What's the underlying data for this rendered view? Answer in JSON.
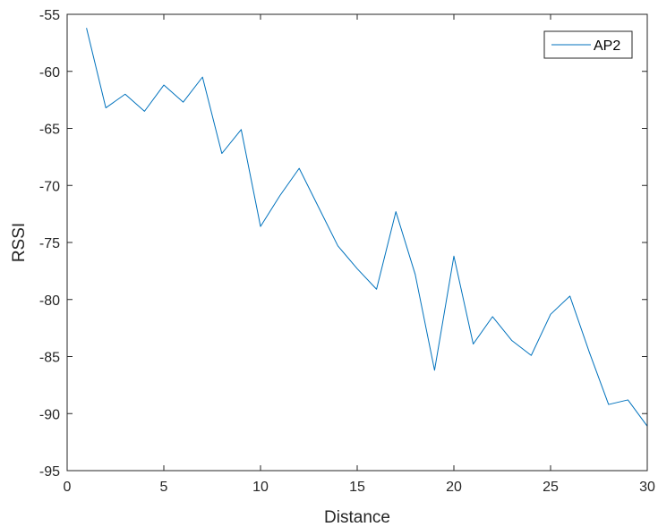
{
  "chart_data": {
    "type": "line",
    "title": "",
    "xlabel": "Distance",
    "ylabel": "RSSI",
    "xlim": [
      0,
      30
    ],
    "ylim": [
      -95,
      -55
    ],
    "xticks": [
      0,
      5,
      10,
      15,
      20,
      25,
      30
    ],
    "yticks": [
      -95,
      -90,
      -85,
      -80,
      -75,
      -70,
      -65,
      -60,
      -55
    ],
    "grid": false,
    "legend_position": "top-right",
    "series": [
      {
        "name": "AP2",
        "color": "#0072bd",
        "x": [
          1,
          2,
          3,
          4,
          5,
          6,
          7,
          8,
          9,
          10,
          11,
          12,
          13,
          14,
          15,
          16,
          17,
          18,
          19,
          20,
          21,
          22,
          23,
          24,
          25,
          26,
          27,
          28,
          29,
          30
        ],
        "y": [
          -56.2,
          -63.2,
          -62.0,
          -63.5,
          -61.2,
          -62.7,
          -60.5,
          -67.2,
          -65.1,
          -73.6,
          -70.9,
          -68.5,
          -71.9,
          -75.3,
          -77.3,
          -79.1,
          -72.3,
          -77.8,
          -86.2,
          -76.2,
          -83.9,
          -81.5,
          -83.6,
          -84.9,
          -81.3,
          -79.7,
          -84.6,
          -89.2,
          -88.8,
          -91.1
        ]
      }
    ]
  }
}
